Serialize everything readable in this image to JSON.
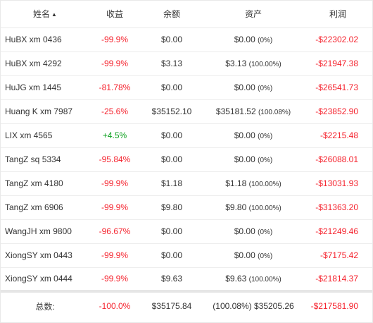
{
  "headers": {
    "name": "姓名",
    "return": "收益",
    "balance": "余额",
    "asset": "资产",
    "profit": "利润"
  },
  "rows": [
    {
      "name": "HuBX xm 0436",
      "return": "-99.9%",
      "balance": "$0.00",
      "asset": "$0.00",
      "asset_pct": "(0%)",
      "profit": "-$22302.02"
    },
    {
      "name": "HuBX xm 4292",
      "return": "-99.9%",
      "balance": "$3.13",
      "asset": "$3.13",
      "asset_pct": "(100.00%)",
      "profit": "-$21947.38"
    },
    {
      "name": "HuJG xm 1445",
      "return": "-81.78%",
      "balance": "$0.00",
      "asset": "$0.00",
      "asset_pct": "(0%)",
      "profit": "-$26541.73"
    },
    {
      "name": "Huang K xm 7987",
      "return": "-25.6%",
      "balance": "$35152.10",
      "asset": "$35181.52",
      "asset_pct": "(100.08%)",
      "profit": "-$23852.90"
    },
    {
      "name": "LIX xm 4565",
      "return": "+4.5%",
      "balance": "$0.00",
      "asset": "$0.00",
      "asset_pct": "(0%)",
      "profit": "-$2215.48"
    },
    {
      "name": "TangZ sq 5334",
      "return": "-95.84%",
      "balance": "$0.00",
      "asset": "$0.00",
      "asset_pct": "(0%)",
      "profit": "-$26088.01"
    },
    {
      "name": "TangZ xm 4180",
      "return": "-99.9%",
      "balance": "$1.18",
      "asset": "$1.18",
      "asset_pct": "(100.00%)",
      "profit": "-$13031.93"
    },
    {
      "name": "TangZ xm 6906",
      "return": "-99.9%",
      "balance": "$9.80",
      "asset": "$9.80",
      "asset_pct": "(100.00%)",
      "profit": "-$31363.20"
    },
    {
      "name": "WangJH xm 9800",
      "return": "-96.67%",
      "balance": "$0.00",
      "asset": "$0.00",
      "asset_pct": "(0%)",
      "profit": "-$21249.46"
    },
    {
      "name": "XiongSY xm 0443",
      "return": "-99.9%",
      "balance": "$0.00",
      "asset": "$0.00",
      "asset_pct": "(0%)",
      "profit": "-$7175.42"
    },
    {
      "name": "XiongSY xm 0444",
      "return": "-99.9%",
      "balance": "$9.63",
      "asset": "$9.63",
      "asset_pct": "(100.00%)",
      "profit": "-$21814.37"
    }
  ],
  "footer": {
    "label": "总数:",
    "return": "-100.0%",
    "balance": "$35175.84",
    "asset": "(100.08%) $35205.26",
    "profit": "-$217581.90"
  },
  "colors": {
    "negative": "#f5222d",
    "positive": "#0ea120"
  },
  "sort": {
    "column": "name",
    "direction": "ascending",
    "icon": "caret-up-icon"
  }
}
